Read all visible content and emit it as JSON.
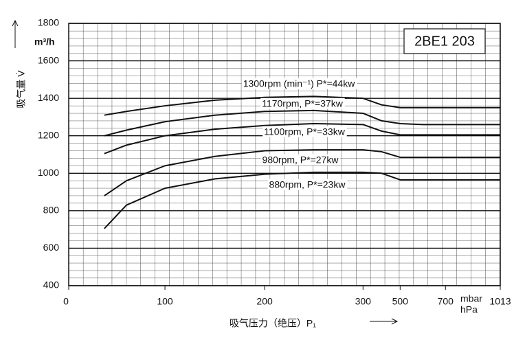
{
  "chart_data": {
    "type": "line",
    "title": "2BE1 203",
    "y_label": "吸气量 V̇",
    "y_unit": "m³/h",
    "x_label": "吸气压力（绝压）P₁",
    "x_unit": "mbar",
    "x_unit_alt": "hPa",
    "x": [
      37,
      60,
      100,
      150,
      200,
      250,
      300,
      400,
      500,
      600,
      700,
      1013
    ],
    "series": [
      {
        "name": "1300rpm (min⁻¹) P*=44kw",
        "color": "#111111",
        "values": [
          1310,
          1330,
          1360,
          1390,
          1405,
          1410,
          1400,
          1365,
          1350,
          1350,
          1350,
          1350
        ]
      },
      {
        "name": "1170rpm, P*=37kw",
        "color": "#111111",
        "values": [
          1200,
          1230,
          1275,
          1310,
          1330,
          1335,
          1320,
          1280,
          1265,
          1260,
          1260,
          1260
        ]
      },
      {
        "name": "1100rpm, P*=33kw",
        "color": "#111111",
        "values": [
          1105,
          1150,
          1200,
          1235,
          1255,
          1265,
          1260,
          1225,
          1205,
          1205,
          1205,
          1205
        ]
      },
      {
        "name": "980rpm, P*=27kw",
        "color": "#111111",
        "values": [
          880,
          960,
          1040,
          1090,
          1120,
          1125,
          1125,
          1115,
          1085,
          1085,
          1085,
          1085
        ]
      },
      {
        "name": "880rpm, P*=23kw",
        "color": "#111111",
        "values": [
          705,
          830,
          920,
          970,
          995,
          1005,
          1005,
          1000,
          965,
          965,
          965,
          965
        ]
      }
    ],
    "xlim": [
      0,
      1013
    ],
    "xticks": [
      0,
      100,
      200,
      300,
      500,
      700,
      1013
    ],
    "ylim": [
      400,
      1800
    ],
    "yticks": [
      400,
      600,
      800,
      1000,
      1200,
      1400,
      1600,
      1800
    ],
    "grid": true
  }
}
